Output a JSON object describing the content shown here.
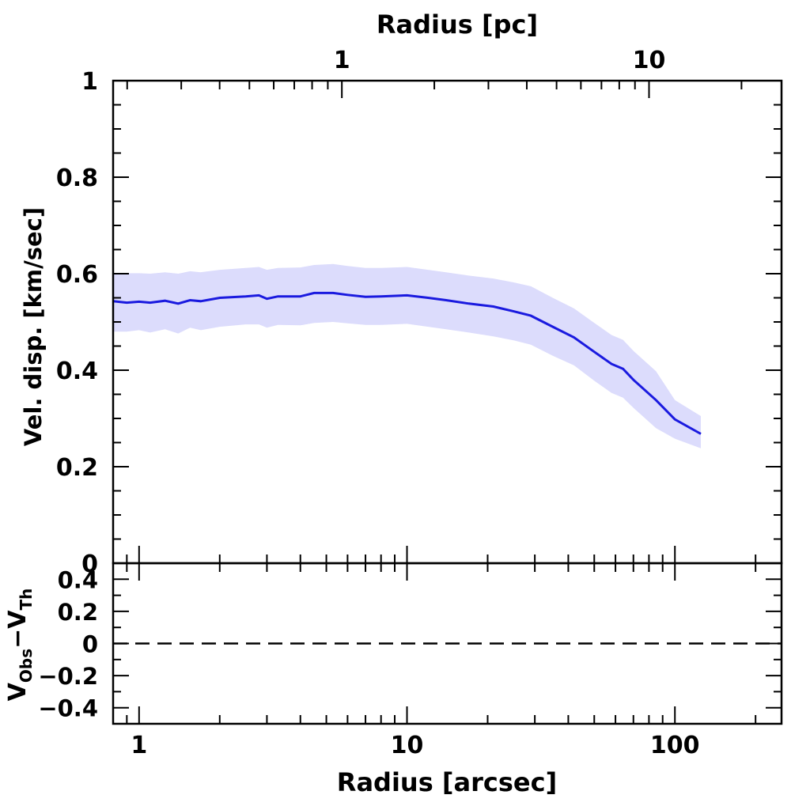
{
  "chart_data": [
    {
      "type": "area",
      "panel": "main",
      "xlabel_bottom": "Radius [arcsec]",
      "xlabel_top": "Radius [pc]",
      "ylabel": "Vel. disp. [km/sec]",
      "x_scale": "log",
      "xlim": [
        0.8,
        250
      ],
      "top_xlim_pc": [
        0.18,
        27
      ],
      "ylim": [
        0,
        1
      ],
      "y_ticks": [
        "0",
        "0.2",
        "0.4",
        "0.6",
        "0.8",
        "1"
      ],
      "top_ticks": [
        "1",
        "10"
      ],
      "series": [
        {
          "line_color": "#1a1adf",
          "band_color": "#dcdcfc",
          "points": [
            {
              "x": 0.8,
              "y": 0.543,
              "lo": 0.48,
              "hi": 0.6
            },
            {
              "x": 0.9,
              "y": 0.54,
              "lo": 0.48,
              "hi": 0.601
            },
            {
              "x": 1.0,
              "y": 0.542,
              "lo": 0.483,
              "hi": 0.601
            },
            {
              "x": 1.1,
              "y": 0.54,
              "lo": 0.478,
              "hi": 0.6
            },
            {
              "x": 1.25,
              "y": 0.544,
              "lo": 0.485,
              "hi": 0.603
            },
            {
              "x": 1.4,
              "y": 0.538,
              "lo": 0.476,
              "hi": 0.6
            },
            {
              "x": 1.55,
              "y": 0.545,
              "lo": 0.488,
              "hi": 0.605
            },
            {
              "x": 1.7,
              "y": 0.543,
              "lo": 0.483,
              "hi": 0.603
            },
            {
              "x": 2.0,
              "y": 0.55,
              "lo": 0.49,
              "hi": 0.608
            },
            {
              "x": 2.5,
              "y": 0.553,
              "lo": 0.495,
              "hi": 0.612
            },
            {
              "x": 2.8,
              "y": 0.555,
              "lo": 0.495,
              "hi": 0.614
            },
            {
              "x": 3.0,
              "y": 0.548,
              "lo": 0.488,
              "hi": 0.608
            },
            {
              "x": 3.3,
              "y": 0.553,
              "lo": 0.494,
              "hi": 0.612
            },
            {
              "x": 4.0,
              "y": 0.553,
              "lo": 0.493,
              "hi": 0.613
            },
            {
              "x": 4.5,
              "y": 0.56,
              "lo": 0.498,
              "hi": 0.618
            },
            {
              "x": 5.3,
              "y": 0.56,
              "lo": 0.5,
              "hi": 0.62
            },
            {
              "x": 6.0,
              "y": 0.556,
              "lo": 0.497,
              "hi": 0.616
            },
            {
              "x": 7.0,
              "y": 0.552,
              "lo": 0.494,
              "hi": 0.612
            },
            {
              "x": 8.0,
              "y": 0.553,
              "lo": 0.494,
              "hi": 0.612
            },
            {
              "x": 10.0,
              "y": 0.555,
              "lo": 0.496,
              "hi": 0.614
            },
            {
              "x": 12.0,
              "y": 0.55,
              "lo": 0.49,
              "hi": 0.608
            },
            {
              "x": 14.0,
              "y": 0.545,
              "lo": 0.485,
              "hi": 0.603
            },
            {
              "x": 17.0,
              "y": 0.538,
              "lo": 0.478,
              "hi": 0.596
            },
            {
              "x": 21.0,
              "y": 0.532,
              "lo": 0.47,
              "hi": 0.59
            },
            {
              "x": 25.0,
              "y": 0.522,
              "lo": 0.462,
              "hi": 0.582
            },
            {
              "x": 29.0,
              "y": 0.513,
              "lo": 0.453,
              "hi": 0.574
            },
            {
              "x": 35.0,
              "y": 0.49,
              "lo": 0.43,
              "hi": 0.55
            },
            {
              "x": 42.0,
              "y": 0.468,
              "lo": 0.41,
              "hi": 0.528
            },
            {
              "x": 50.0,
              "y": 0.438,
              "lo": 0.378,
              "hi": 0.498
            },
            {
              "x": 58.0,
              "y": 0.413,
              "lo": 0.353,
              "hi": 0.473
            },
            {
              "x": 64.0,
              "y": 0.403,
              "lo": 0.343,
              "hi": 0.463
            },
            {
              "x": 70.0,
              "y": 0.38,
              "lo": 0.322,
              "hi": 0.44
            },
            {
              "x": 85.0,
              "y": 0.338,
              "lo": 0.28,
              "hi": 0.398
            },
            {
              "x": 100.0,
              "y": 0.298,
              "lo": 0.258,
              "hi": 0.338
            },
            {
              "x": 125.0,
              "y": 0.268,
              "lo": 0.238,
              "hi": 0.305
            }
          ]
        }
      ]
    },
    {
      "type": "line",
      "panel": "residual",
      "ylabel": "V_Obs−V_Th",
      "ylabel_main": "V",
      "ylabel_sub1": "Obs",
      "ylabel_sep": "−V",
      "ylabel_sub2": "Th",
      "x_scale": "log",
      "xlim": [
        0.8,
        250
      ],
      "ylim": [
        -0.5,
        0.5
      ],
      "y_ticks": [
        "0.4",
        "0.2",
        "0",
        "−0.2",
        "−0.4"
      ],
      "x_ticks": [
        "1",
        "10",
        "100"
      ],
      "reference_line": {
        "y": 0,
        "style": "dashed",
        "color": "#000000"
      }
    }
  ]
}
